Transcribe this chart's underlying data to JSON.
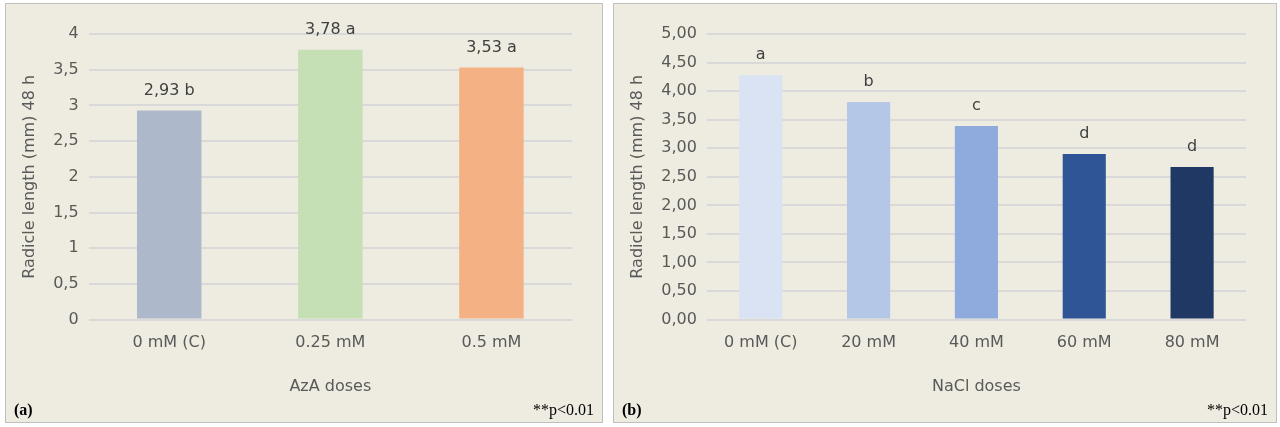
{
  "chart_data": [
    {
      "type": "bar",
      "xlabel": "AzA doses",
      "ylabel": "Radicle length (mm) 48 h",
      "categories": [
        "0 mM (C)",
        "0.25 mM",
        "0.5 mM"
      ],
      "values": [
        2.93,
        3.78,
        3.53
      ],
      "colors": [
        "#adb9ca",
        "#c5e0b4",
        "#f4b183"
      ],
      "value_labels": [
        "2,93 b",
        "3,78 a",
        "3,53 a"
      ],
      "ylim": [
        0,
        4
      ],
      "yticks": [
        0,
        {
          "value": 0.5,
          "label": "0,5"
        },
        1,
        {
          "value": 1.5,
          "label": "1,5"
        },
        2,
        {
          "value": 2.5,
          "label": "2,5"
        },
        3,
        {
          "value": 3.5,
          "label": "3,5"
        },
        4
      ],
      "grid": "y",
      "legend": false,
      "annotations": [
        "(a)",
        "**p<0.01"
      ]
    },
    {
      "type": "bar",
      "xlabel": "NaCl doses",
      "ylabel": "Radicle length (mm) 48 h",
      "categories": [
        "0 mM (C)",
        "20 mM",
        "40 mM",
        "60 mM",
        "80 mM"
      ],
      "values": [
        4.28,
        3.81,
        3.39,
        2.9,
        2.67
      ],
      "colors": [
        "#dae3f3",
        "#b4c7e7",
        "#8faadc",
        "#2f5597",
        "#203864"
      ],
      "value_labels": [
        "a",
        "b",
        "c",
        "d",
        "d"
      ],
      "ylim": [
        0,
        5
      ],
      "yticks": [
        {
          "value": 0,
          "label": "0,00"
        },
        {
          "value": 0.5,
          "label": "0,50"
        },
        {
          "value": 1,
          "label": "1,00"
        },
        {
          "value": 1.5,
          "label": "1,50"
        },
        {
          "value": 2,
          "label": "2,00"
        },
        {
          "value": 2.5,
          "label": "2,50"
        },
        {
          "value": 3,
          "label": "3,00"
        },
        {
          "value": 3.5,
          "label": "3,50"
        },
        {
          "value": 4,
          "label": "4,00"
        },
        {
          "value": 4.5,
          "label": "4,50"
        },
        {
          "value": 5,
          "label": "5,00"
        }
      ],
      "grid": "y",
      "legend": false,
      "annotations": [
        "(b)",
        "**p<0.01"
      ]
    }
  ]
}
